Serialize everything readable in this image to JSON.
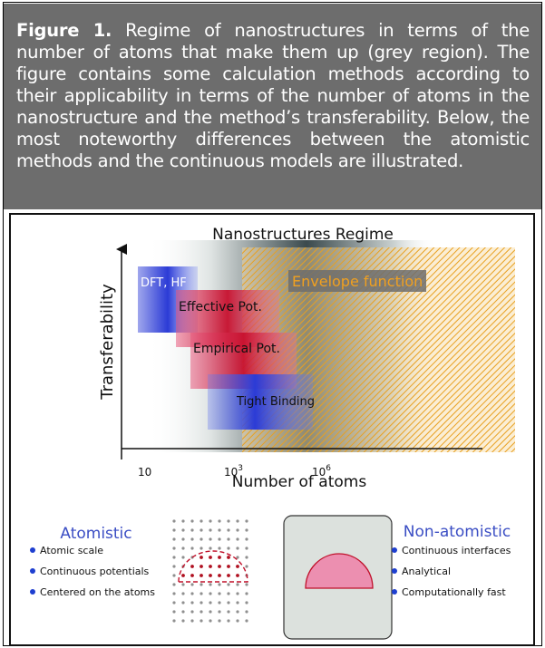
{
  "caption": {
    "label": "Figure 1.",
    "text": " Regime of nanostructures in terms of the number of atoms that make them up (grey region). The figure contains some calculation methods according to their applicability in terms of the number of atoms in the nanostructure and the method’s transferability. Below, the most noteworthy differences between the atomistic methods and the continuous models are illustrated."
  },
  "plot": {
    "title": "Nanostructures Regime",
    "ylabel": "Transferability",
    "xlabel": "Number of atoms",
    "ticks": [
      {
        "base": "10",
        "exp": ""
      },
      {
        "base": "10",
        "exp": "3"
      },
      {
        "base": "10",
        "exp": "6"
      }
    ],
    "methods": {
      "dft": "DFT, HF",
      "effective": "Effective Pot.",
      "empirical": "Empirical Pot.",
      "tight": "Tight Binding",
      "envelope": "Envelope function"
    }
  },
  "atomistic": {
    "title": "Atomistic",
    "items": [
      "Atomic scale",
      "Continuous potentials",
      "Centered on the atoms"
    ]
  },
  "nonatomistic": {
    "title": "Non-atomistic",
    "items": [
      "Continuous interfaces",
      "Analytical",
      "Computationally fast"
    ]
  },
  "colors": {
    "caption_bg": "#6d6d6d",
    "blue": "#2b3bd6",
    "red": "#c8102e",
    "orange": "#f0a020",
    "atomistic_title": "#3b4ec4",
    "bullet": "#1e3fd0",
    "dot_grey": "#8f8f8f",
    "dot_red": "#b01020",
    "lens_pink": "#ec8fb0",
    "lens_border": "#c0102a",
    "box_bg": "#dce1dd"
  }
}
